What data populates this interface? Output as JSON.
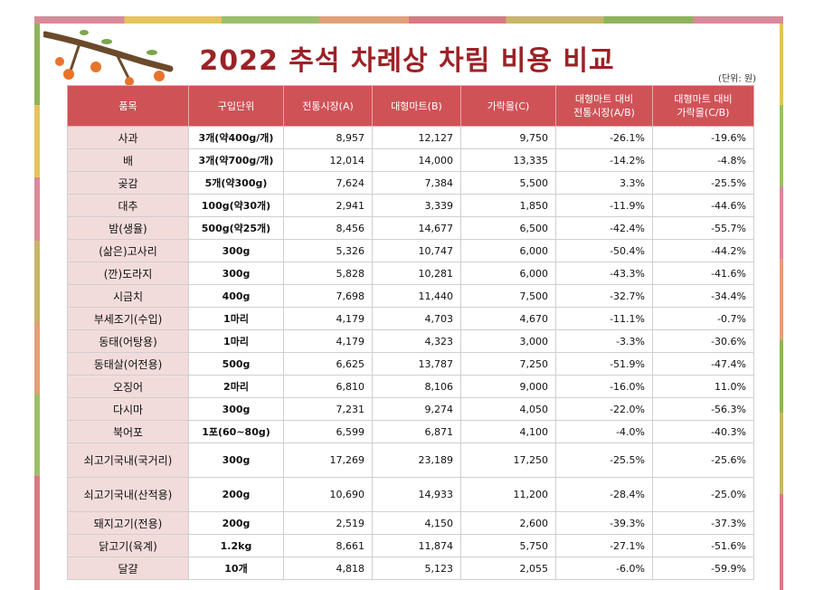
{
  "title": "2022 추석 차례상 차림 비용 비교",
  "unit_note": "(단위: 원)",
  "colors": {
    "header_bg": "#cf5257",
    "name_bg": "#f2dcdb",
    "title": "#9b2226"
  },
  "headers": [
    "품목",
    "구입단위",
    "전통시장(A)",
    "대형마트(B)",
    "가락몰(C)",
    "대형마트 대비\n전통시장(A/B)",
    "대형마트 대비\n가락몰(C/B)"
  ],
  "rows": [
    {
      "item": "사과",
      "unit": "3개(약400g/개)",
      "a": "8,957",
      "b": "12,127",
      "c": "9,750",
      "ab": "-26.1%",
      "cb": "-19.6%"
    },
    {
      "item": "배",
      "unit": "3개(약700g/개)",
      "a": "12,014",
      "b": "14,000",
      "c": "13,335",
      "ab": "-14.2%",
      "cb": "-4.8%"
    },
    {
      "item": "곶감",
      "unit": "5개(약300g)",
      "a": "7,624",
      "b": "7,384",
      "c": "5,500",
      "ab": "3.3%",
      "cb": "-25.5%"
    },
    {
      "item": "대추",
      "unit": "100g(약30개)",
      "a": "2,941",
      "b": "3,339",
      "c": "1,850",
      "ab": "-11.9%",
      "cb": "-44.6%"
    },
    {
      "item": "밤(생율)",
      "unit": "500g(약25개)",
      "a": "8,456",
      "b": "14,677",
      "c": "6,500",
      "ab": "-42.4%",
      "cb": "-55.7%"
    },
    {
      "item": "(삶은)고사리",
      "unit": "300g",
      "a": "5,326",
      "b": "10,747",
      "c": "6,000",
      "ab": "-50.4%",
      "cb": "-44.2%"
    },
    {
      "item": "(깐)도라지",
      "unit": "300g",
      "a": "5,828",
      "b": "10,281",
      "c": "6,000",
      "ab": "-43.3%",
      "cb": "-41.6%"
    },
    {
      "item": "시금치",
      "unit": "400g",
      "a": "7,698",
      "b": "11,440",
      "c": "7,500",
      "ab": "-32.7%",
      "cb": "-34.4%"
    },
    {
      "item": "부세조기(수입)",
      "unit": "1마리",
      "a": "4,179",
      "b": "4,703",
      "c": "4,670",
      "ab": "-11.1%",
      "cb": "-0.7%"
    },
    {
      "item": "동태(어탕용)",
      "unit": "1마리",
      "a": "4,179",
      "b": "4,323",
      "c": "3,000",
      "ab": "-3.3%",
      "cb": "-30.6%"
    },
    {
      "item": "동태살(어전용)",
      "unit": "500g",
      "a": "6,625",
      "b": "13,787",
      "c": "7,250",
      "ab": "-51.9%",
      "cb": "-47.4%"
    },
    {
      "item": "오징어",
      "unit": "2마리",
      "a": "6,810",
      "b": "8,106",
      "c": "9,000",
      "ab": "-16.0%",
      "cb": "11.0%"
    },
    {
      "item": "다시마",
      "unit": "300g",
      "a": "7,231",
      "b": "9,274",
      "c": "4,050",
      "ab": "-22.0%",
      "cb": "-56.3%"
    },
    {
      "item": "북어포",
      "unit": "1포(60~80g)",
      "a": "6,599",
      "b": "6,871",
      "c": "4,100",
      "ab": "-4.0%",
      "cb": "-40.3%"
    },
    {
      "item": "쇠고기국내(국거리)",
      "unit": "300g",
      "a": "17,269",
      "b": "23,189",
      "c": "17,250",
      "ab": "-25.5%",
      "cb": "-25.6%",
      "tall": true
    },
    {
      "item": "쇠고기국내(산적용)",
      "unit": "200g",
      "a": "10,690",
      "b": "14,933",
      "c": "11,200",
      "ab": "-28.4%",
      "cb": "-25.0%",
      "tall": true
    },
    {
      "item": "돼지고기(전용)",
      "unit": "200g",
      "a": "2,519",
      "b": "4,150",
      "c": "2,600",
      "ab": "-39.3%",
      "cb": "-37.3%"
    },
    {
      "item": "닭고기(육계)",
      "unit": "1.2kg",
      "a": "8,661",
      "b": "11,874",
      "c": "5,750",
      "ab": "-27.1%",
      "cb": "-51.6%"
    },
    {
      "item": "달걀",
      "unit": "10개",
      "a": "4,818",
      "b": "5,123",
      "c": "2,055",
      "ab": "-6.0%",
      "cb": "-59.9%"
    }
  ]
}
